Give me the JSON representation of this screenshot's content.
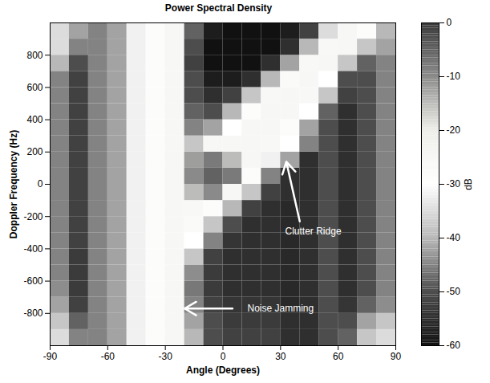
{
  "chart_data": {
    "type": "heatmap",
    "title": "Power Spectral Density",
    "x_label": "Angle (Degrees)",
    "y_label": "Doppler Frequency (Hz)",
    "xlim": [
      -90,
      90
    ],
    "ylim": [
      -1000,
      1000
    ],
    "xticks": [
      -90,
      -60,
      -30,
      0,
      30,
      60,
      90
    ],
    "yticks": [
      -800,
      -600,
      -400,
      -200,
      0,
      200,
      400,
      600,
      800
    ],
    "x_edges": [
      -90,
      -80,
      -70,
      -60,
      -50,
      -40,
      -30,
      -20,
      -10,
      0,
      10,
      20,
      30,
      40,
      50,
      60,
      70,
      80,
      90
    ],
    "y_edges": [
      -1000,
      -900,
      -800,
      -700,
      -600,
      -500,
      -400,
      -300,
      -200,
      -100,
      0,
      100,
      200,
      300,
      400,
      500,
      600,
      700,
      800,
      900,
      1000
    ],
    "values": [
      [
        -35,
        -45,
        -45,
        -42,
        -32,
        -28,
        -25,
        -40,
        -50,
        -52,
        -52,
        -52,
        -55,
        -55,
        -50,
        -48,
        -38,
        -35
      ],
      [
        -38,
        -48,
        -45,
        -42,
        -32,
        -28,
        -25,
        -42,
        -50,
        -53,
        -53,
        -53,
        -55,
        -55,
        -50,
        -50,
        -42,
        -38
      ],
      [
        -42,
        -52,
        -45,
        -42,
        -32,
        -28,
        -25,
        -45,
        -52,
        -54,
        -54,
        -54,
        -56,
        -55,
        -50,
        -54,
        -48,
        -44
      ],
      [
        -44,
        -53,
        -45,
        -42,
        -32,
        -28,
        -25,
        -46,
        -53,
        -55,
        -55,
        -55,
        -56,
        -55,
        -50,
        -55,
        -50,
        -45
      ],
      [
        -45,
        -53,
        -45,
        -42,
        -32,
        -28,
        -25,
        -44,
        -53,
        -55,
        -55,
        -55,
        -56,
        -55,
        -50,
        -55,
        -50,
        -45
      ],
      [
        -45,
        -53,
        -45,
        -42,
        -32,
        -28,
        -25,
        -38,
        -52,
        -55,
        -55,
        -55,
        -56,
        -55,
        -50,
        -55,
        -50,
        -45
      ],
      [
        -45,
        -52,
        -45,
        -42,
        -32,
        -28,
        -25,
        -30,
        -45,
        -54,
        -55,
        -55,
        -56,
        -55,
        -50,
        -55,
        -50,
        -45
      ],
      [
        -45,
        -52,
        -45,
        -42,
        -32,
        -28,
        -25,
        -27,
        -38,
        -50,
        -55,
        -55,
        -56,
        -55,
        -50,
        -55,
        -50,
        -45
      ],
      [
        -45,
        -52,
        -45,
        -42,
        -32,
        -28,
        -25,
        -26,
        -28,
        -40,
        -52,
        -55,
        -56,
        -55,
        -50,
        -55,
        -50,
        -45
      ],
      [
        -45,
        -52,
        -45,
        -42,
        -32,
        -28,
        -25,
        -15,
        -10,
        -25,
        -38,
        -52,
        -55,
        -55,
        -50,
        -55,
        -50,
        -45
      ],
      [
        -45,
        -52,
        -45,
        -42,
        -32,
        -28,
        -25,
        -10,
        -5,
        -8,
        -28,
        -45,
        -55,
        -55,
        -50,
        -55,
        -50,
        -45
      ],
      [
        -45,
        -52,
        -45,
        -42,
        -32,
        -28,
        -25,
        -12,
        -8,
        -15,
        -25,
        -32,
        -42,
        -55,
        -50,
        -55,
        -50,
        -45
      ],
      [
        -45,
        -52,
        -45,
        -42,
        -32,
        -28,
        -25,
        -38,
        -25,
        -25,
        -25,
        -26,
        -30,
        -45,
        -50,
        -55,
        -50,
        -45
      ],
      [
        -45,
        -52,
        -45,
        -42,
        -32,
        -28,
        -25,
        -45,
        -42,
        -30,
        -25,
        -25,
        -28,
        -42,
        -50,
        -55,
        -50,
        -45
      ],
      [
        -45,
        -52,
        -45,
        -42,
        -32,
        -28,
        -25,
        -48,
        -50,
        -40,
        -28,
        -25,
        -25,
        -30,
        -48,
        -55,
        -50,
        -45
      ],
      [
        -45,
        -52,
        -45,
        -42,
        -32,
        -28,
        -25,
        -50,
        -55,
        -52,
        -38,
        -26,
        -25,
        -26,
        -38,
        -52,
        -50,
        -45
      ],
      [
        -45,
        -52,
        -45,
        -42,
        -32,
        -28,
        -25,
        -50,
        -58,
        -58,
        -55,
        -40,
        -27,
        -25,
        -30,
        -50,
        -50,
        -45
      ],
      [
        -40,
        -50,
        -45,
        -42,
        -32,
        -28,
        -25,
        -52,
        -60,
        -60,
        -60,
        -55,
        -42,
        -26,
        -25,
        -38,
        -48,
        -45
      ],
      [
        -35,
        -45,
        -45,
        -42,
        -32,
        -28,
        -25,
        -50,
        -60,
        -60,
        -60,
        -60,
        -55,
        -40,
        -26,
        -25,
        -38,
        -42
      ],
      [
        -35,
        -42,
        -45,
        -42,
        -32,
        -28,
        -25,
        -48,
        -58,
        -60,
        -60,
        -60,
        -58,
        -52,
        -35,
        -25,
        -28,
        -40
      ]
    ],
    "colorbar": {
      "label": "dB",
      "range": [
        -60,
        0
      ],
      "ticks": [
        -60,
        -50,
        -40,
        -30,
        -20,
        -10,
        0
      ],
      "colors": [
        "#111111",
        "#4d4d4d",
        "#b8b8b8",
        "#ffffff",
        "#eeeeea",
        "#8a8a8a",
        "#3a3a3a"
      ]
    },
    "annotations": [
      {
        "text": "Clutter Ridge",
        "x": 47,
        "y": -290,
        "arrow_x": 33,
        "arrow_y": 140
      },
      {
        "text": "Noise Jamming",
        "x": 30,
        "y": -770,
        "arrow_x": -20,
        "arrow_y": -770
      }
    ]
  }
}
